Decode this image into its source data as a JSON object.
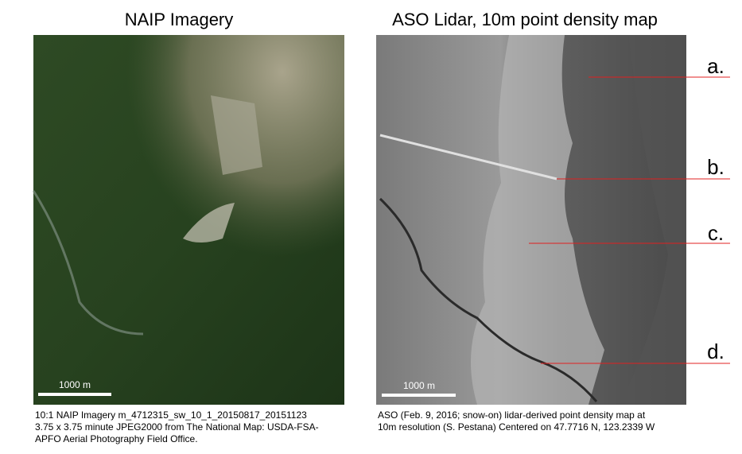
{
  "left_panel": {
    "title": "NAIP Imagery",
    "scale_label": "1000 m",
    "caption": [
      "10:1 NAIP Imagery m_4712315_sw_10_1_20150817_20151123",
      "3.75 x 3.75 minute JPEG2000 from The National Map: USDA-FSA-",
      "APFO Aerial Photography Field Office."
    ]
  },
  "right_panel": {
    "title": "ASO Lidar, 10m point density map",
    "scale_label": "1000 m",
    "caption": [
      "ASO (Feb. 9, 2016; snow-on) lidar-derived point density map at",
      "10m resolution (S. Pestana) Centered on 47.7716 N, 123.2339 W"
    ],
    "annotations": [
      "a.",
      "b.",
      "c.",
      "d."
    ]
  }
}
